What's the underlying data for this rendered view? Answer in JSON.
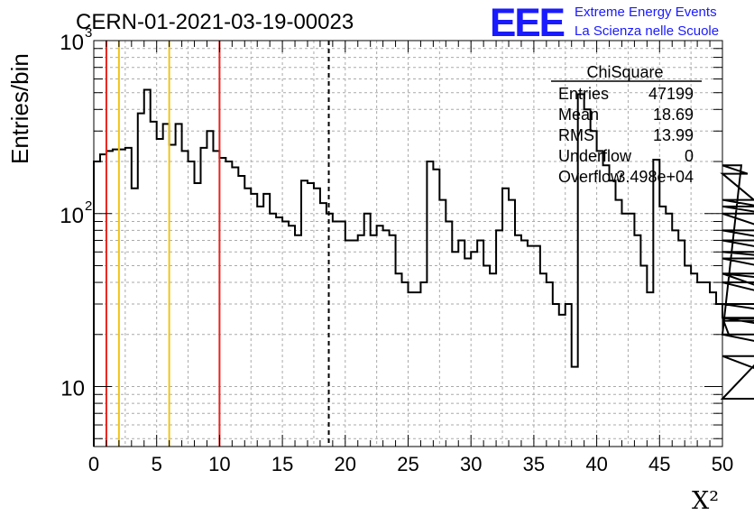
{
  "chart_data": {
    "type": "histogram",
    "title": "CERN-01-2021-03-19-00023",
    "xlabel": "X²",
    "ylabel": "Entries/bin",
    "xlim": [
      0,
      50
    ],
    "ylim": [
      4.5,
      1000
    ],
    "log_y": true,
    "grid": true,
    "bin_width": 0.5,
    "x_ticks": [
      0,
      5,
      10,
      15,
      20,
      25,
      30,
      35,
      40,
      45,
      50
    ],
    "y_tick_labels": [
      {
        "value": 10,
        "label": "10"
      },
      {
        "value": 100,
        "label": "10",
        "exp": "2"
      },
      {
        "value": 1000,
        "label": "10",
        "exp": "3"
      }
    ],
    "values": [
      200,
      220,
      230,
      235,
      235,
      240,
      140,
      380,
      520,
      340,
      270,
      330,
      250,
      330,
      230,
      200,
      150,
      240,
      300,
      230,
      210,
      200,
      185,
      165,
      140,
      130,
      110,
      130,
      100,
      95,
      90,
      85,
      75,
      155,
      150,
      140,
      115,
      100,
      90,
      90,
      70,
      70,
      75,
      100,
      75,
      85,
      80,
      75,
      45,
      40,
      35,
      35,
      40,
      200,
      180,
      120,
      90,
      60,
      70,
      55,
      60,
      70,
      50,
      45,
      80,
      140,
      120,
      75,
      70,
      65,
      65,
      45,
      40,
      30,
      26,
      30,
      13,
      490,
      400,
      300,
      230,
      190,
      155,
      120,
      100,
      100,
      75,
      50,
      35,
      205,
      110,
      100,
      80,
      70,
      50,
      45,
      40,
      40,
      35,
      30,
      25,
      20,
      20,
      190,
      170,
      120,
      110,
      100,
      80,
      70,
      60,
      55,
      45,
      40,
      30,
      25,
      20,
      15,
      8.5,
      45,
      25,
      25,
      24
    ],
    "vertical_lines": [
      {
        "x": 1,
        "color": "#e8231d",
        "style": "solid"
      },
      {
        "x": 2,
        "color": "#f0c419",
        "style": "solid"
      },
      {
        "x": 6,
        "color": "#f0c419",
        "style": "solid"
      },
      {
        "x": 10,
        "color": "#e8231d",
        "style": "solid"
      },
      {
        "x": 18.69,
        "color": "#000000",
        "style": "dashed"
      }
    ],
    "stats_box": {
      "title": "ChiSquare",
      "rows": [
        {
          "label": "Entries",
          "value": "47199"
        },
        {
          "label": "Mean",
          "value": "18.69"
        },
        {
          "label": "RMS",
          "value": "13.99"
        },
        {
          "label": "Underflow",
          "value": "0"
        },
        {
          "label": "Overflow",
          "value": "3.498e+04"
        }
      ]
    }
  },
  "logo": {
    "mark": "EEE",
    "line1": "Extreme Energy Events",
    "line2": "La Scienza nelle Scuole",
    "color": "#1a1aff"
  }
}
